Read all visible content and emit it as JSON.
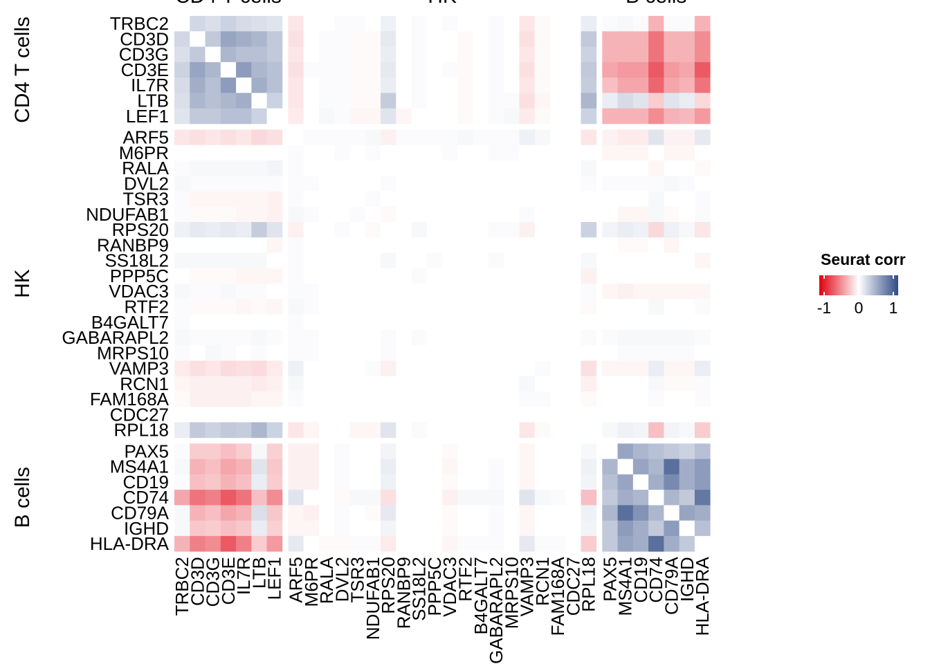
{
  "chart_data": {
    "type": "heatmap",
    "title": "",
    "groups": [
      {
        "name": "CD4 T cells",
        "genes": [
          "TRBC2",
          "CD3D",
          "CD3G",
          "CD3E",
          "IL7R",
          "LTB",
          "LEF1"
        ]
      },
      {
        "name": "HK",
        "genes": [
          "ARF5",
          "M6PR",
          "RALA",
          "DVL2",
          "TSR3",
          "NDUFAB1",
          "RPS20",
          "RANBP9",
          "SS18L2",
          "PPP5C",
          "VDAC3",
          "RTF2",
          "B4GALT7",
          "GABARAPL2",
          "MRPS10",
          "VAMP3",
          "RCN1",
          "FAM168A",
          "CDC27",
          "RPL18"
        ]
      },
      {
        "name": "B cells",
        "genes": [
          "PAX5",
          "MS4A1",
          "CD19",
          "CD74",
          "CD79A",
          "IGHD",
          "HLA-DRA"
        ]
      }
    ],
    "genes": [
      "TRBC2",
      "CD3D",
      "CD3G",
      "CD3E",
      "IL7R",
      "LTB",
      "LEF1",
      "ARF5",
      "M6PR",
      "RALA",
      "DVL2",
      "TSR3",
      "NDUFAB1",
      "RPS20",
      "RANBP9",
      "SS18L2",
      "PPP5C",
      "VDAC3",
      "RTF2",
      "B4GALT7",
      "GABARAPL2",
      "MRPS10",
      "VAMP3",
      "RCN1",
      "FAM168A",
      "CDC27",
      "RPL18",
      "PAX5",
      "MS4A1",
      "CD19",
      "CD74",
      "CD79A",
      "IGHD",
      "HLA-DRA"
    ],
    "matrix": [
      [
        null,
        0.22,
        0.18,
        0.25,
        0.2,
        0.18,
        0.15,
        -0.1,
        0.0,
        0.0,
        0.02,
        0.02,
        0.0,
        0.08,
        0.0,
        0.02,
        0.0,
        0.02,
        0.0,
        0.0,
        0.02,
        0.0,
        -0.1,
        -0.02,
        0.0,
        0.0,
        0.1,
        0.02,
        0.04,
        0.02,
        -0.3,
        0.02,
        0.02,
        -0.3
      ],
      [
        0.22,
        null,
        0.3,
        0.5,
        0.45,
        0.4,
        0.3,
        -0.12,
        0.0,
        0.02,
        0.02,
        -0.02,
        -0.02,
        0.12,
        0.0,
        0.02,
        0.0,
        0.0,
        -0.02,
        0.0,
        0.02,
        0.0,
        -0.12,
        -0.02,
        0.0,
        0.0,
        0.3,
        -0.3,
        -0.3,
        -0.3,
        -0.55,
        -0.3,
        -0.3,
        -0.45
      ],
      [
        0.18,
        0.3,
        null,
        0.4,
        0.35,
        0.35,
        0.3,
        -0.1,
        0.0,
        0.02,
        0.02,
        -0.02,
        -0.02,
        0.1,
        0.0,
        0.02,
        0.0,
        0.0,
        -0.02,
        0.0,
        0.02,
        0.0,
        -0.1,
        -0.02,
        0.0,
        0.0,
        0.25,
        -0.3,
        -0.3,
        -0.3,
        -0.55,
        -0.3,
        -0.3,
        -0.45
      ],
      [
        0.25,
        0.5,
        0.4,
        null,
        0.55,
        0.4,
        0.35,
        -0.12,
        0.02,
        0.02,
        0.02,
        -0.02,
        -0.02,
        0.12,
        0.0,
        0.02,
        0.0,
        0.02,
        -0.02,
        0.0,
        0.02,
        0.0,
        -0.12,
        -0.02,
        0.0,
        0.0,
        0.3,
        -0.35,
        -0.4,
        -0.4,
        -0.65,
        -0.4,
        -0.35,
        -0.65
      ],
      [
        0.2,
        0.45,
        0.35,
        0.55,
        null,
        0.45,
        0.35,
        -0.1,
        0.0,
        0.02,
        0.02,
        -0.02,
        -0.02,
        0.1,
        0.0,
        0.02,
        0.0,
        0.0,
        -0.02,
        0.0,
        0.02,
        0.0,
        -0.1,
        -0.02,
        0.0,
        0.0,
        0.28,
        -0.25,
        -0.35,
        -0.35,
        -0.6,
        -0.35,
        -0.3,
        -0.55
      ],
      [
        0.18,
        0.4,
        0.35,
        0.4,
        0.45,
        null,
        0.25,
        -0.1,
        0.0,
        0.02,
        0.02,
        -0.02,
        -0.02,
        0.28,
        0.0,
        0.02,
        0.0,
        0.0,
        -0.02,
        0.0,
        0.02,
        0.02,
        -0.12,
        -0.04,
        0.0,
        0.0,
        0.4,
        0.1,
        0.2,
        0.15,
        -0.2,
        0.15,
        0.1,
        -0.15
      ],
      [
        0.15,
        0.3,
        0.3,
        0.35,
        0.35,
        0.25,
        null,
        -0.08,
        0.0,
        0.04,
        0.02,
        -0.04,
        -0.04,
        0.15,
        -0.04,
        0.0,
        0.0,
        0.0,
        -0.02,
        0.0,
        0.02,
        0.04,
        -0.08,
        -0.02,
        0.0,
        0.0,
        0.25,
        -0.3,
        -0.3,
        -0.3,
        -0.45,
        -0.3,
        -0.28,
        -0.4
      ],
      [
        -0.1,
        -0.12,
        -0.1,
        -0.12,
        -0.1,
        -0.15,
        -0.12,
        null,
        0.02,
        0.02,
        0.02,
        0.02,
        0.04,
        -0.06,
        0.02,
        0.02,
        0.02,
        0.02,
        0.04,
        0.02,
        0.02,
        0.02,
        0.08,
        0.04,
        0.0,
        0.0,
        -0.1,
        -0.05,
        -0.08,
        -0.08,
        0.15,
        -0.05,
        -0.05,
        0.12
      ],
      [
        0.0,
        0.0,
        0.0,
        0.0,
        0.0,
        0.0,
        0.0,
        0.02,
        null,
        0.0,
        0.02,
        0.0,
        0.02,
        0.0,
        0.0,
        0.0,
        0.0,
        0.02,
        0.0,
        0.0,
        0.02,
        0.02,
        0.0,
        0.0,
        0.0,
        0.0,
        0.0,
        -0.04,
        -0.04,
        -0.04,
        0.0,
        -0.04,
        -0.04,
        0.0
      ],
      [
        0.02,
        0.04,
        0.04,
        0.04,
        0.04,
        0.04,
        0.06,
        0.02,
        0.0,
        null,
        0.0,
        0.0,
        0.0,
        0.0,
        0.0,
        0.0,
        0.0,
        0.0,
        0.0,
        0.0,
        0.0,
        0.0,
        0.0,
        0.0,
        0.0,
        0.0,
        0.04,
        0.0,
        0.0,
        0.0,
        -0.04,
        0.0,
        0.0,
        -0.02
      ],
      [
        0.04,
        0.02,
        0.02,
        0.02,
        0.02,
        0.02,
        0.02,
        0.02,
        0.02,
        0.0,
        null,
        0.0,
        0.0,
        0.02,
        0.0,
        0.0,
        0.0,
        0.0,
        0.0,
        0.0,
        0.0,
        0.0,
        0.0,
        0.0,
        0.0,
        0.0,
        0.02,
        0.02,
        0.02,
        0.02,
        0.02,
        0.04,
        0.02,
        0.0
      ],
      [
        0.02,
        -0.04,
        -0.04,
        -0.04,
        -0.04,
        -0.04,
        -0.06,
        0.02,
        0.0,
        0.0,
        0.0,
        null,
        0.02,
        0.0,
        0.0,
        0.0,
        0.0,
        0.0,
        0.0,
        0.0,
        0.0,
        0.0,
        0.0,
        0.0,
        0.0,
        0.0,
        0.0,
        0.0,
        0.0,
        0.0,
        0.04,
        0.0,
        0.0,
        0.02
      ],
      [
        0.02,
        -0.02,
        -0.02,
        -0.02,
        -0.04,
        -0.04,
        -0.06,
        0.04,
        0.02,
        0.0,
        0.0,
        0.02,
        null,
        -0.02,
        0.0,
        0.0,
        0.0,
        0.0,
        0.0,
        0.0,
        0.0,
        0.0,
        0.02,
        0.0,
        0.0,
        0.0,
        0.0,
        0.0,
        -0.04,
        -0.04,
        0.04,
        -0.02,
        0.0,
        0.02
      ],
      [
        0.08,
        0.12,
        0.1,
        0.12,
        0.1,
        0.28,
        0.15,
        -0.06,
        0.0,
        0.0,
        0.02,
        0.0,
        -0.02,
        null,
        0.0,
        0.04,
        0.0,
        0.0,
        0.0,
        0.0,
        0.02,
        0.02,
        -0.06,
        0.0,
        0.0,
        0.0,
        0.25,
        0.06,
        0.1,
        0.08,
        -0.15,
        0.08,
        0.04,
        -0.1
      ],
      [
        0.0,
        0.0,
        0.0,
        0.0,
        0.0,
        0.0,
        -0.04,
        0.02,
        0.0,
        0.0,
        0.0,
        0.0,
        0.0,
        0.0,
        null,
        0.0,
        0.0,
        0.0,
        0.0,
        0.0,
        0.0,
        0.0,
        0.0,
        0.0,
        0.0,
        0.0,
        0.0,
        0.0,
        -0.02,
        -0.02,
        0.0,
        -0.04,
        0.0,
        0.0
      ],
      [
        0.04,
        0.04,
        0.04,
        0.04,
        0.04,
        0.04,
        0.0,
        0.02,
        0.0,
        0.0,
        0.0,
        0.0,
        0.0,
        0.04,
        0.0,
        null,
        0.02,
        0.0,
        0.0,
        0.0,
        0.02,
        0.0,
        0.0,
        0.0,
        0.0,
        0.0,
        0.04,
        0.0,
        0.0,
        0.0,
        0.0,
        0.0,
        0.0,
        -0.04
      ],
      [
        0.0,
        -0.02,
        -0.02,
        -0.02,
        -0.04,
        -0.04,
        -0.04,
        0.02,
        0.0,
        0.0,
        0.0,
        0.0,
        0.0,
        0.0,
        0.0,
        0.02,
        null,
        0.0,
        0.0,
        0.0,
        0.0,
        0.0,
        0.0,
        0.0,
        0.0,
        0.0,
        -0.06,
        0.0,
        0.0,
        0.0,
        0.0,
        0.0,
        0.0,
        0.0
      ],
      [
        0.04,
        0.02,
        0.02,
        0.04,
        0.02,
        0.02,
        0.0,
        0.02,
        0.02,
        0.0,
        0.0,
        0.0,
        0.0,
        0.0,
        0.0,
        0.0,
        0.0,
        null,
        0.0,
        0.0,
        0.0,
        0.0,
        0.0,
        0.0,
        0.0,
        0.0,
        0.02,
        -0.04,
        -0.06,
        -0.04,
        -0.04,
        -0.04,
        -0.04,
        -0.04
      ],
      [
        0.02,
        -0.02,
        -0.02,
        -0.02,
        -0.04,
        -0.02,
        -0.04,
        0.04,
        0.02,
        0.0,
        0.0,
        0.0,
        0.0,
        0.0,
        0.0,
        0.0,
        0.0,
        0.0,
        null,
        0.0,
        0.0,
        0.0,
        0.0,
        0.0,
        0.0,
        0.0,
        -0.02,
        0.0,
        0.0,
        0.0,
        0.04,
        0.0,
        0.0,
        0.02
      ],
      [
        0.02,
        0.0,
        0.0,
        0.0,
        0.0,
        0.0,
        0.0,
        0.02,
        0.0,
        0.0,
        0.0,
        0.0,
        0.0,
        0.0,
        0.0,
        0.0,
        0.0,
        0.0,
        0.0,
        null,
        0.0,
        0.0,
        0.0,
        0.0,
        0.0,
        0.0,
        0.0,
        0.0,
        0.0,
        0.0,
        0.0,
        0.0,
        0.0,
        0.0
      ],
      [
        0.04,
        0.02,
        0.02,
        0.02,
        0.02,
        0.04,
        0.02,
        0.02,
        0.02,
        0.0,
        0.0,
        0.0,
        0.0,
        0.02,
        0.0,
        0.02,
        0.0,
        0.0,
        0.0,
        0.0,
        null,
        0.0,
        0.0,
        0.0,
        0.0,
        0.0,
        0.02,
        0.02,
        0.04,
        0.04,
        0.04,
        0.04,
        0.04,
        0.02
      ],
      [
        0.02,
        0.0,
        0.04,
        0.02,
        0.0,
        0.02,
        0.0,
        0.02,
        0.02,
        0.0,
        0.0,
        0.0,
        0.0,
        0.02,
        0.0,
        0.0,
        0.0,
        0.0,
        0.0,
        0.0,
        0.0,
        null,
        0.0,
        0.0,
        0.0,
        0.0,
        0.0,
        0.0,
        0.02,
        0.02,
        0.02,
        0.02,
        0.02,
        0.0
      ],
      [
        -0.08,
        -0.12,
        -0.1,
        -0.14,
        -0.12,
        -0.14,
        -0.08,
        0.08,
        0.0,
        0.0,
        0.0,
        0.0,
        0.02,
        -0.06,
        0.0,
        0.0,
        0.0,
        0.0,
        0.0,
        0.0,
        0.0,
        0.0,
        null,
        0.02,
        0.0,
        0.0,
        -0.12,
        -0.04,
        -0.04,
        -0.04,
        0.1,
        -0.04,
        -0.04,
        0.1
      ],
      [
        -0.04,
        -0.06,
        -0.06,
        -0.06,
        -0.06,
        -0.08,
        -0.06,
        0.04,
        0.0,
        0.0,
        0.0,
        0.0,
        0.0,
        0.0,
        0.0,
        0.0,
        0.0,
        0.0,
        0.0,
        0.0,
        0.0,
        0.0,
        0.04,
        null,
        0.0,
        0.0,
        -0.06,
        0.0,
        0.0,
        0.0,
        0.04,
        -0.02,
        -0.02,
        0.02
      ],
      [
        -0.02,
        -0.06,
        -0.06,
        -0.06,
        -0.06,
        -0.04,
        -0.04,
        0.02,
        0.0,
        0.0,
        0.0,
        0.0,
        0.0,
        0.0,
        0.0,
        0.0,
        0.0,
        0.0,
        0.0,
        0.0,
        0.0,
        0.0,
        0.02,
        0.02,
        null,
        0.0,
        -0.02,
        0.0,
        0.0,
        0.0,
        0.02,
        0.0,
        0.0,
        0.02
      ],
      [
        0.0,
        0.0,
        0.0,
        0.0,
        0.0,
        0.0,
        0.0,
        0.0,
        0.0,
        0.0,
        0.0,
        0.0,
        0.0,
        0.0,
        0.0,
        0.0,
        0.0,
        0.0,
        0.0,
        0.0,
        0.0,
        0.0,
        0.0,
        0.0,
        0.0,
        null,
        0.0,
        0.0,
        0.0,
        0.0,
        0.0,
        0.0,
        0.0,
        0.0
      ],
      [
        0.1,
        0.3,
        0.25,
        0.3,
        0.28,
        0.4,
        0.25,
        -0.1,
        -0.04,
        0.0,
        0.0,
        -0.04,
        -0.04,
        0.15,
        0.0,
        0.02,
        0.0,
        0.0,
        0.0,
        0.0,
        0.0,
        0.0,
        -0.1,
        -0.02,
        0.0,
        0.0,
        null,
        0.04,
        0.08,
        0.06,
        -0.25,
        0.06,
        0.04,
        -0.2
      ],
      [
        0.02,
        -0.2,
        -0.2,
        -0.25,
        -0.2,
        0.04,
        -0.18,
        -0.06,
        -0.06,
        0.0,
        0.02,
        0.0,
        0.0,
        0.06,
        0.0,
        0.0,
        0.0,
        -0.02,
        0.0,
        0.0,
        0.0,
        0.0,
        -0.04,
        0.0,
        0.0,
        0.0,
        0.04,
        null,
        0.5,
        0.4,
        0.35,
        0.3,
        0.25,
        0.35
      ],
      [
        0.04,
        -0.3,
        -0.25,
        -0.35,
        -0.3,
        0.15,
        -0.22,
        -0.06,
        -0.06,
        0.0,
        0.02,
        0.0,
        0.0,
        0.1,
        0.0,
        0.0,
        0.0,
        -0.04,
        0.0,
        0.0,
        0.02,
        0.0,
        -0.04,
        0.0,
        0.0,
        0.0,
        0.08,
        0.4,
        null,
        0.5,
        0.4,
        0.8,
        0.45,
        0.55
      ],
      [
        0.02,
        -0.25,
        -0.22,
        -0.3,
        -0.25,
        0.1,
        -0.2,
        -0.06,
        -0.06,
        0.0,
        0.02,
        0.0,
        0.0,
        0.08,
        0.0,
        0.0,
        0.0,
        -0.02,
        0.0,
        0.0,
        0.02,
        0.0,
        -0.04,
        0.0,
        0.0,
        0.0,
        0.06,
        0.35,
        0.5,
        null,
        0.45,
        0.65,
        0.45,
        0.55
      ],
      [
        -0.35,
        -0.55,
        -0.5,
        -0.65,
        -0.55,
        -0.25,
        -0.45,
        0.15,
        0.0,
        0.0,
        -0.02,
        0.04,
        0.04,
        -0.12,
        0.0,
        0.0,
        0.0,
        -0.06,
        0.04,
        0.04,
        0.04,
        0.0,
        0.15,
        0.04,
        0.02,
        0.0,
        -0.25,
        0.3,
        0.45,
        0.4,
        null,
        0.4,
        0.3,
        0.75
      ],
      [
        0.04,
        -0.3,
        -0.25,
        -0.35,
        -0.3,
        0.18,
        -0.22,
        -0.04,
        -0.06,
        0.0,
        0.02,
        0.0,
        -0.02,
        0.12,
        0.0,
        0.0,
        0.0,
        -0.02,
        0.0,
        0.0,
        0.02,
        0.0,
        -0.04,
        0.0,
        0.0,
        0.0,
        0.08,
        0.4,
        0.8,
        0.6,
        0.4,
        null,
        0.5,
        0.45
      ],
      [
        0.04,
        -0.22,
        -0.2,
        -0.25,
        -0.22,
        0.1,
        -0.18,
        -0.04,
        -0.04,
        0.0,
        0.02,
        0.0,
        0.0,
        0.06,
        0.0,
        0.0,
        0.0,
        -0.02,
        0.0,
        0.0,
        0.02,
        0.0,
        -0.04,
        0.0,
        0.0,
        0.0,
        0.06,
        0.3,
        0.55,
        0.45,
        0.3,
        0.55,
        null,
        0.35
      ],
      [
        -0.3,
        -0.5,
        -0.45,
        -0.65,
        -0.5,
        -0.2,
        -0.4,
        0.12,
        0.0,
        -0.02,
        -0.02,
        0.02,
        0.02,
        -0.08,
        0.0,
        0.0,
        0.0,
        -0.04,
        0.02,
        0.02,
        0.02,
        0.0,
        0.12,
        0.02,
        0.02,
        0.0,
        -0.2,
        0.3,
        0.5,
        0.45,
        0.8,
        0.45,
        0.3,
        null
      ]
    ],
    "legend": {
      "title": "Seurat corr",
      "ticks": [
        -1,
        0,
        1
      ],
      "low_color": "#e0000f",
      "mid_color": "#ffffff",
      "high_color": "#304b85"
    },
    "diagonal_color": "#ffffff"
  }
}
